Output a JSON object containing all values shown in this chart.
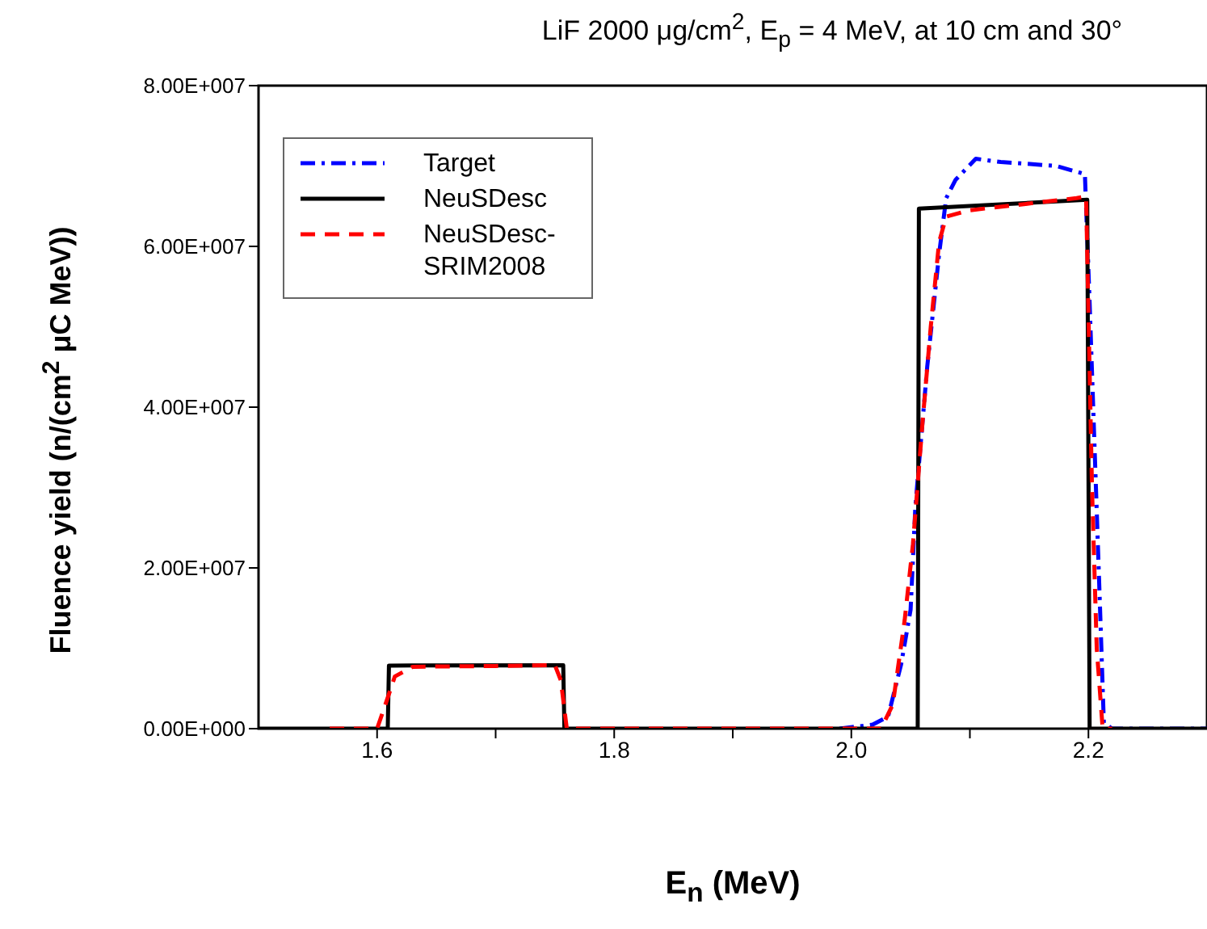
{
  "chart_data": {
    "type": "line",
    "title": "LiF 2000 μg/cm$^{2}$, E$_{p}$ = 4 MeV, at 10 cm and 30°",
    "xlabel": "E$_{n}$ (MeV)",
    "ylabel": "Fluence yield (n/(cm$^{2}$ μC MeV))",
    "xlim": [
      1.5,
      2.3
    ],
    "xticks": [
      1.6,
      {
        "value": 1.7,
        "label": null
      },
      1.8,
      {
        "value": 1.9,
        "label": null
      },
      {
        "value": 2,
        "label": "2.0"
      },
      {
        "value": 2.1,
        "label": null
      },
      2.2
    ],
    "ylim": [
      0,
      80000000
    ],
    "yticks": [
      {
        "value": 0,
        "label": "0.00E+000"
      },
      {
        "value": 20000000,
        "label": "2.00E+007"
      },
      {
        "value": 40000000,
        "label": "4.00E+007"
      },
      {
        "value": 60000000,
        "label": "6.00E+007"
      },
      {
        "value": 80000000,
        "label": "8.00E+007"
      }
    ],
    "legend": "top left",
    "marker": "none",
    "series": [
      {
        "name": "Target",
        "color": "#0000ff",
        "line_style": "dashdot",
        "x": [
          1.99,
          2.018,
          2.031,
          2.042,
          2.05,
          2.054,
          2.064,
          2.074,
          2.08,
          2.088,
          2.105,
          2.126,
          2.146,
          2.173,
          2.197,
          2.201,
          2.209,
          2.213,
          2.22,
          2.3
        ],
        "values": [
          0,
          500000,
          1500000,
          8000000,
          14800000,
          27600000,
          45000000,
          59000000,
          66000000,
          68300000,
          70900000,
          70500000,
          70300000,
          70000000,
          69000000,
          53000000,
          18400000,
          700000,
          0,
          0
        ]
      },
      {
        "name": "NeuSDesc",
        "color": "#000000",
        "line_style": "solid",
        "x": [
          1.5,
          1.609,
          1.61,
          1.757,
          1.758,
          2.056,
          2.057,
          2.199,
          2.201,
          2.3
        ],
        "values": [
          0,
          0,
          7850000,
          7900000,
          0,
          0,
          64700000,
          65800000,
          0,
          0
        ]
      },
      {
        "name": "NeuSDesc-SRIM2008",
        "color": "#ff0000",
        "line_style": "dashed",
        "x": [
          1.56,
          1.6,
          1.607,
          1.615,
          1.63,
          1.7,
          1.75,
          1.755,
          1.76,
          2.025,
          2.035,
          2.045,
          2.052,
          2.06,
          2.067,
          2.074,
          2.08,
          2.1,
          2.13,
          2.16,
          2.19,
          2.198,
          2.203,
          2.207,
          2.212,
          2.22
        ],
        "values": [
          0,
          0,
          3000000,
          6500000,
          7700000,
          7800000,
          7900000,
          6000000,
          0,
          0,
          3000000,
          13500000,
          23000000,
          38000000,
          50000000,
          60500000,
          63700000,
          64500000,
          65000000,
          65500000,
          66000000,
          66200000,
          30000000,
          10000000,
          0,
          0
        ]
      }
    ]
  }
}
